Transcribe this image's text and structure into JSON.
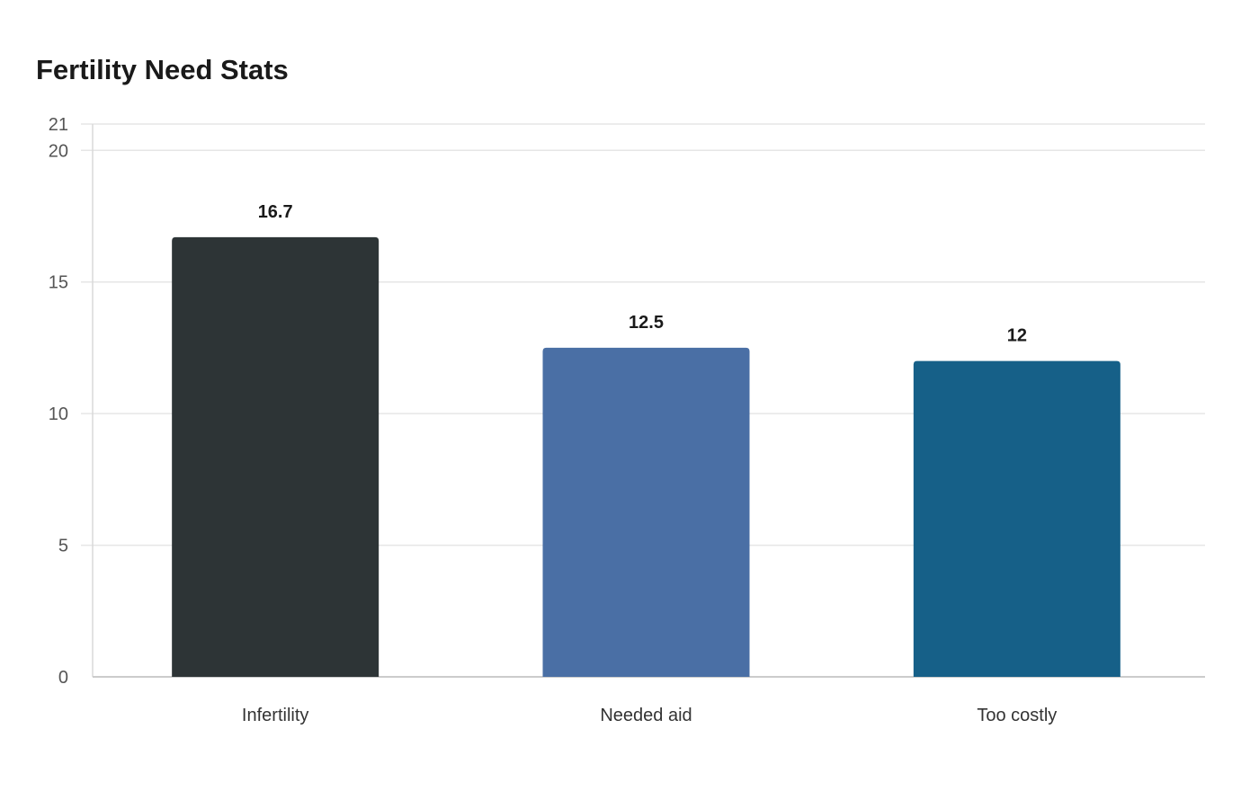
{
  "chart_data": {
    "type": "bar",
    "title": "Fertility Need Stats",
    "categories": [
      "Infertility",
      "Needed aid",
      "Too costly"
    ],
    "values": [
      16.7,
      12.5,
      12
    ],
    "data_labels": [
      "16.7",
      "12.5",
      "12"
    ],
    "colors": [
      "#2d3436",
      "#4a6fa5",
      "#166088"
    ],
    "xlabel": "",
    "ylabel": "",
    "ylim": [
      0,
      21
    ],
    "yticks": [
      0,
      5,
      10,
      15,
      20,
      21
    ],
    "grid": true,
    "legend": "none"
  }
}
